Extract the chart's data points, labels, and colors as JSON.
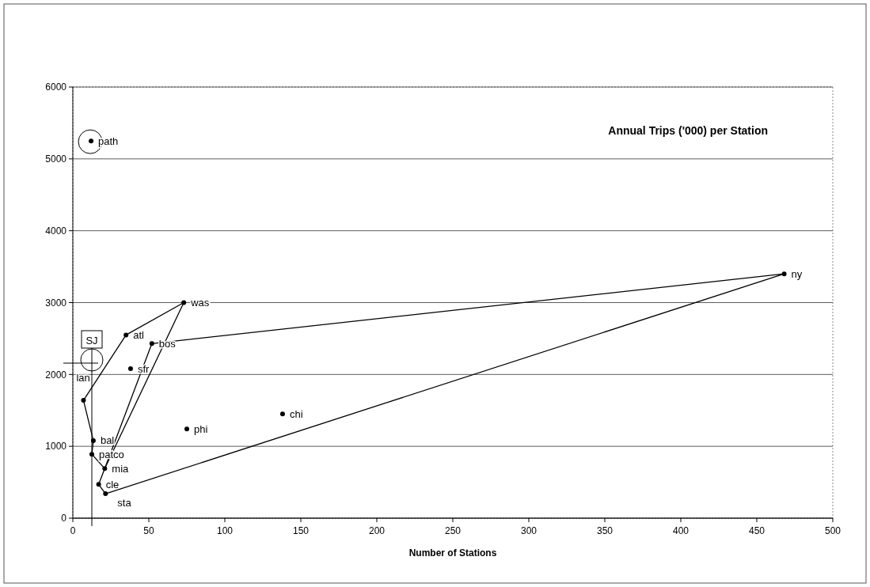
{
  "chart_data": {
    "type": "scatter",
    "title": "Annual Trips ('000) per Station",
    "xlabel": "Number of Stations",
    "xlim": [
      0,
      500
    ],
    "xticks": [
      0,
      50,
      100,
      150,
      200,
      250,
      300,
      350,
      400,
      450,
      500
    ],
    "ylim": [
      0,
      6000
    ],
    "yticks": [
      0,
      1000,
      2000,
      3000,
      4000,
      5000,
      6000
    ],
    "grid": "y",
    "marker": "circle",
    "series": [
      {
        "type": "line",
        "color": "#000000",
        "marker": "none",
        "line_style": "solid",
        "x": [
          73,
          35,
          7,
          13.5,
          12.5,
          21,
          17,
          21.5,
          468,
          52
        ],
        "values": [
          3000,
          2550,
          1640,
          1080,
          890,
          690,
          470,
          340,
          3400,
          2430
        ]
      },
      {
        "type": "line",
        "color": "#000000",
        "marker": "none",
        "line_style": "solid",
        "x": [
          52,
          21,
          73
        ],
        "values": [
          2430,
          690,
          3000
        ]
      },
      {
        "color": "#000000",
        "x": [
          12,
          468,
          73,
          35,
          52,
          38,
          7,
          138,
          75,
          13.5,
          12.5,
          21,
          17,
          21.5
        ],
        "values": [
          5250,
          3400,
          3000,
          2550,
          2430,
          2080,
          1640,
          1450,
          1240,
          1080,
          890,
          690,
          470,
          340
        ]
      }
    ],
    "annotations": [
      {
        "text": "path",
        "x": 12,
        "y": 5250
      },
      {
        "text": "ny",
        "x": 468,
        "y": 3400
      },
      {
        "text": "was",
        "x": 73,
        "y": 3000
      },
      {
        "text": "atl",
        "x": 35,
        "y": 2550
      },
      {
        "text": "bos",
        "x": 52,
        "y": 2430
      },
      {
        "text": "sfr",
        "x": 38,
        "y": 2080
      },
      {
        "text": "lan",
        "x": 7,
        "y": 1640
      },
      {
        "text": "chi",
        "x": 138,
        "y": 1450
      },
      {
        "text": "phi",
        "x": 75,
        "y": 1240
      },
      {
        "text": "bal",
        "x": 13.5,
        "y": 1080
      },
      {
        "text": "patco",
        "x": 12.5,
        "y": 890
      },
      {
        "text": "mia",
        "x": 21,
        "y": 690
      },
      {
        "text": "cle",
        "x": 17,
        "y": 470
      },
      {
        "text": "sta",
        "x": 21.5,
        "y": 340
      },
      "SJ"
    ]
  }
}
